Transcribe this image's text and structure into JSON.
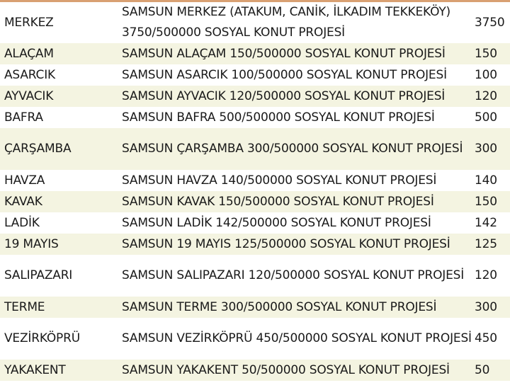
{
  "colors": {
    "accent_line": "#d9a072",
    "row_alt": "#f4f4e1"
  },
  "rows": [
    {
      "district": "MERKEZ",
      "project": "SAMSUN MERKEZ (ATAKUM, CANİK, İLKADIM TEKKEKÖY) 3750/500000 SOSYAL KONUT PROJESİ",
      "count": "3750"
    },
    {
      "district": "ALAÇAM",
      "project": "SAMSUN ALAÇAM 150/500000 SOSYAL KONUT PROJESİ",
      "count": "150"
    },
    {
      "district": "ASARCIK",
      "project": "SAMSUN ASARCIK 100/500000 SOSYAL KONUT PROJESİ",
      "count": "100"
    },
    {
      "district": "AYVACIK",
      "project": "SAMSUN AYVACIK 120/500000 SOSYAL KONUT PROJESİ",
      "count": "120"
    },
    {
      "district": "BAFRA",
      "project": "SAMSUN BAFRA 500/500000 SOSYAL KONUT PROJESİ",
      "count": "500"
    },
    {
      "district": "ÇARŞAMBA",
      "project": "SAMSUN ÇARŞAMBA 300/500000 SOSYAL KONUT PROJESİ",
      "count": "300"
    },
    {
      "district": "HAVZA",
      "project": "SAMSUN HAVZA 140/500000 SOSYAL KONUT PROJESİ",
      "count": "140"
    },
    {
      "district": "KAVAK",
      "project": "SAMSUN KAVAK 150/500000 SOSYAL KONUT PROJESİ",
      "count": "150"
    },
    {
      "district": "LADİK",
      "project": "SAMSUN LADİK 142/500000 SOSYAL KONUT PROJESİ",
      "count": "142"
    },
    {
      "district": "19 MAYIS",
      "project": "SAMSUN 19 MAYIS 125/500000 SOSYAL KONUT PROJESİ",
      "count": "125"
    },
    {
      "district": "SALIPAZARI",
      "project": "SAMSUN SALIPAZARI 120/500000 SOSYAL KONUT PROJESİ",
      "count": "120"
    },
    {
      "district": "TERME",
      "project": "SAMSUN TERME 300/500000 SOSYAL KONUT PROJESİ",
      "count": "300"
    },
    {
      "district": "VEZİRKÖPRÜ",
      "project": "SAMSUN VEZİRKÖPRÜ 450/500000 SOSYAL KONUT PROJESİ",
      "count": "450"
    },
    {
      "district": "YAKAKENT",
      "project": "SAMSUN YAKAKENT 50/500000 SOSYAL KONUT PROJESİ",
      "count": "50"
    }
  ]
}
